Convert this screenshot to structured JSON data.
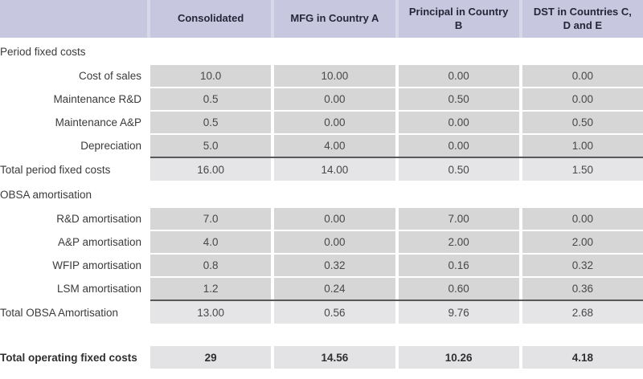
{
  "chart_data": {
    "type": "table",
    "columns": [
      "Consolidated",
      "MFG in Country A",
      "Principal in Country B",
      "DST in Countries C, D and E"
    ],
    "sections": [
      {
        "header": "Period fixed costs",
        "rows": [
          {
            "label": "Cost of sales",
            "values": [
              "10.0",
              "10.00",
              "0.00",
              "0.00"
            ]
          },
          {
            "label": "Maintenance R&D",
            "values": [
              "0.5",
              "0.00",
              "0.50",
              "0.00"
            ]
          },
          {
            "label": "Maintenance A&P",
            "values": [
              "0.5",
              "0.00",
              "0.00",
              "0.50"
            ]
          },
          {
            "label": "Depreciation",
            "values": [
              "5.0",
              "4.00",
              "0.00",
              "1.00"
            ]
          }
        ],
        "total": {
          "label": "Total period fixed costs",
          "values": [
            "16.00",
            "14.00",
            "0.50",
            "1.50"
          ]
        }
      },
      {
        "header": "OBSA amortisation",
        "rows": [
          {
            "label": "R&D amortisation",
            "values": [
              "7.0",
              "0.00",
              "7.00",
              "0.00"
            ]
          },
          {
            "label": "A&P amortisation",
            "values": [
              "4.0",
              "0.00",
              "2.00",
              "2.00"
            ]
          },
          {
            "label": "WFIP amortisation",
            "values": [
              "0.8",
              "0.32",
              "0.16",
              "0.32"
            ]
          },
          {
            "label": "LSM amortisation",
            "values": [
              "1.2",
              "0.24",
              "0.60",
              "0.36"
            ]
          }
        ],
        "total": {
          "label": "Total OBSA Amortisation",
          "values": [
            "13.00",
            "0.56",
            "9.76",
            "2.68"
          ]
        }
      }
    ],
    "grand_total": {
      "label": "Total operating fixed costs",
      "values": [
        "29",
        "14.56",
        "10.26",
        "4.18"
      ]
    }
  },
  "colors": {
    "header_bg": "#c7c7df",
    "header_gap": "#d8d8e9",
    "data_cell_bg": "#d6d6d6",
    "total_row_bg": "#e5e5e7",
    "grand_total_bg": "#e3e3e5",
    "total_rule": "#58585a",
    "header_text": "#26263a",
    "body_text": "#3b3b3d"
  }
}
